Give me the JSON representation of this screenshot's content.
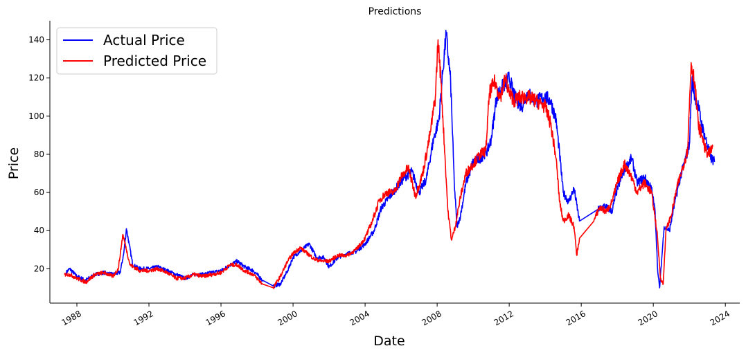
{
  "chart_data": {
    "type": "line",
    "title": "Predictions",
    "xlabel": "Date",
    "ylabel": "Price",
    "xlim": [
      1986.5,
      2024.8
    ],
    "ylim": [
      2,
      150
    ],
    "x_ticks": [
      {
        "value": 1988,
        "label": "1988"
      },
      {
        "value": 1992,
        "label": "1992"
      },
      {
        "value": 1996,
        "label": "1996"
      },
      {
        "value": 2000,
        "label": "2000"
      },
      {
        "value": 2004,
        "label": "2004"
      },
      {
        "value": 2008,
        "label": "2008"
      },
      {
        "value": 2012,
        "label": "2012"
      },
      {
        "value": 2016,
        "label": "2016"
      },
      {
        "value": 2020,
        "label": "2020"
      },
      {
        "value": 2024,
        "label": "2024"
      }
    ],
    "y_ticks": [
      {
        "value": 20,
        "label": "20"
      },
      {
        "value": 40,
        "label": "40"
      },
      {
        "value": 60,
        "label": "60"
      },
      {
        "value": 80,
        "label": "80"
      },
      {
        "value": 100,
        "label": "100"
      },
      {
        "value": 120,
        "label": "120"
      },
      {
        "value": 140,
        "label": "140"
      }
    ],
    "grid": false,
    "legend_position": "top-left",
    "series": [
      {
        "name": "Actual Price",
        "color": "#0000ff",
        "points": [
          [
            1987.4,
            18
          ],
          [
            1987.6,
            20
          ],
          [
            1988.0,
            16
          ],
          [
            1988.5,
            14
          ],
          [
            1989.0,
            17
          ],
          [
            1989.5,
            18
          ],
          [
            1990.0,
            17
          ],
          [
            1990.4,
            18
          ],
          [
            1990.6,
            28
          ],
          [
            1990.75,
            41
          ],
          [
            1990.9,
            33
          ],
          [
            1991.1,
            22
          ],
          [
            1991.5,
            20
          ],
          [
            1992.0,
            20
          ],
          [
            1992.5,
            21
          ],
          [
            1993.0,
            19
          ],
          [
            1993.5,
            17
          ],
          [
            1994.0,
            15
          ],
          [
            1994.5,
            17
          ],
          [
            1995.0,
            17
          ],
          [
            1995.5,
            18
          ],
          [
            1996.0,
            19
          ],
          [
            1996.5,
            22
          ],
          [
            1996.9,
            24
          ],
          [
            1997.3,
            21
          ],
          [
            1997.8,
            19
          ],
          [
            1998.3,
            14
          ],
          [
            1998.9,
            11
          ],
          [
            1999.3,
            12
          ],
          [
            1999.7,
            19
          ],
          [
            2000.0,
            26
          ],
          [
            2000.5,
            30
          ],
          [
            2000.9,
            33
          ],
          [
            2001.3,
            26
          ],
          [
            2001.7,
            26
          ],
          [
            2002.0,
            21
          ],
          [
            2002.5,
            26
          ],
          [
            2003.0,
            28
          ],
          [
            2003.5,
            29
          ],
          [
            2004.0,
            33
          ],
          [
            2004.5,
            40
          ],
          [
            2004.9,
            52
          ],
          [
            2005.3,
            57
          ],
          [
            2005.7,
            62
          ],
          [
            2006.2,
            68
          ],
          [
            2006.6,
            71
          ],
          [
            2007.0,
            60
          ],
          [
            2007.4,
            67
          ],
          [
            2007.8,
            88
          ],
          [
            2008.1,
            98
          ],
          [
            2008.3,
            122
          ],
          [
            2008.5,
            143
          ],
          [
            2008.75,
            118
          ],
          [
            2008.95,
            65
          ],
          [
            2009.1,
            42
          ],
          [
            2009.3,
            48
          ],
          [
            2009.6,
            65
          ],
          [
            2010.0,
            76
          ],
          [
            2010.4,
            78
          ],
          [
            2010.8,
            82
          ],
          [
            2011.0,
            88
          ],
          [
            2011.3,
            110
          ],
          [
            2011.6,
            115
          ],
          [
            2012.0,
            120
          ],
          [
            2012.3,
            110
          ],
          [
            2012.7,
            105
          ],
          [
            2013.0,
            112
          ],
          [
            2013.5,
            108
          ],
          [
            2014.0,
            110
          ],
          [
            2014.3,
            108
          ],
          [
            2014.6,
            98
          ],
          [
            2014.8,
            80
          ],
          [
            2015.0,
            60
          ],
          [
            2015.3,
            55
          ],
          [
            2015.6,
            62
          ],
          [
            2015.9,
            45
          ],
          [
            2016.9,
            51
          ],
          [
            2017.3,
            53
          ],
          [
            2017.7,
            50
          ],
          [
            2018.0,
            62
          ],
          [
            2018.4,
            72
          ],
          [
            2018.8,
            78
          ],
          [
            2019.1,
            65
          ],
          [
            2019.5,
            68
          ],
          [
            2019.9,
            62
          ],
          [
            2020.1,
            50
          ],
          [
            2020.25,
            18
          ],
          [
            2020.35,
            10
          ],
          [
            2020.6,
            42
          ],
          [
            2020.9,
            40
          ],
          [
            2021.2,
            55
          ],
          [
            2021.5,
            68
          ],
          [
            2021.8,
            78
          ],
          [
            2022.0,
            85
          ],
          [
            2022.15,
            120
          ],
          [
            2022.3,
            110
          ],
          [
            2022.5,
            105
          ],
          [
            2022.7,
            95
          ],
          [
            2022.9,
            88
          ],
          [
            2023.2,
            78
          ],
          [
            2023.4,
            76
          ]
        ]
      },
      {
        "name": "Predicted Price",
        "color": "#ff0000",
        "points": [
          [
            1987.3,
            17
          ],
          [
            1987.6,
            17
          ],
          [
            1988.0,
            15
          ],
          [
            1988.5,
            13
          ],
          [
            1989.0,
            17
          ],
          [
            1989.5,
            18
          ],
          [
            1990.0,
            16
          ],
          [
            1990.3,
            20
          ],
          [
            1990.55,
            38
          ],
          [
            1990.75,
            30
          ],
          [
            1990.95,
            22
          ],
          [
            1991.5,
            19
          ],
          [
            1992.0,
            19
          ],
          [
            1992.5,
            20
          ],
          [
            1993.0,
            18
          ],
          [
            1993.5,
            15
          ],
          [
            1994.0,
            15
          ],
          [
            1994.5,
            17
          ],
          [
            1995.0,
            16
          ],
          [
            1995.5,
            17
          ],
          [
            1996.0,
            18
          ],
          [
            1996.5,
            22
          ],
          [
            1996.9,
            22
          ],
          [
            1997.3,
            19
          ],
          [
            1997.8,
            17
          ],
          [
            1998.3,
            12
          ],
          [
            1998.9,
            10
          ],
          [
            1999.3,
            16
          ],
          [
            1999.7,
            24
          ],
          [
            2000.0,
            28
          ],
          [
            2000.4,
            31
          ],
          [
            2000.8,
            28
          ],
          [
            2001.2,
            25
          ],
          [
            2001.6,
            24
          ],
          [
            2002.0,
            24
          ],
          [
            2002.5,
            27
          ],
          [
            2003.0,
            27
          ],
          [
            2003.5,
            30
          ],
          [
            2004.0,
            36
          ],
          [
            2004.4,
            45
          ],
          [
            2004.8,
            56
          ],
          [
            2005.2,
            60
          ],
          [
            2005.6,
            60
          ],
          [
            2006.0,
            68
          ],
          [
            2006.4,
            73
          ],
          [
            2006.8,
            58
          ],
          [
            2007.2,
            70
          ],
          [
            2007.6,
            90
          ],
          [
            2007.9,
            110
          ],
          [
            2008.05,
            140
          ],
          [
            2008.2,
            120
          ],
          [
            2008.4,
            85
          ],
          [
            2008.6,
            50
          ],
          [
            2008.8,
            35
          ],
          [
            2009.0,
            42
          ],
          [
            2009.3,
            58
          ],
          [
            2009.6,
            70
          ],
          [
            2010.0,
            75
          ],
          [
            2010.4,
            80
          ],
          [
            2010.7,
            82
          ],
          [
            2010.9,
            112
          ],
          [
            2011.2,
            118
          ],
          [
            2011.5,
            110
          ],
          [
            2011.8,
            120
          ],
          [
            2012.0,
            112
          ],
          [
            2012.3,
            108
          ],
          [
            2012.6,
            110
          ],
          [
            2013.0,
            110
          ],
          [
            2013.5,
            108
          ],
          [
            2014.0,
            105
          ],
          [
            2014.3,
            96
          ],
          [
            2014.6,
            78
          ],
          [
            2014.8,
            55
          ],
          [
            2015.0,
            45
          ],
          [
            2015.3,
            48
          ],
          [
            2015.6,
            42
          ],
          [
            2015.75,
            27
          ],
          [
            2015.9,
            36
          ],
          [
            2016.7,
            45
          ],
          [
            2017.0,
            52
          ],
          [
            2017.4,
            50
          ],
          [
            2017.7,
            55
          ],
          [
            2018.0,
            65
          ],
          [
            2018.4,
            75
          ],
          [
            2018.8,
            68
          ],
          [
            2019.1,
            60
          ],
          [
            2019.5,
            65
          ],
          [
            2019.9,
            60
          ],
          [
            2020.2,
            40
          ],
          [
            2020.4,
            15
          ],
          [
            2020.55,
            12
          ],
          [
            2020.7,
            40
          ],
          [
            2021.0,
            48
          ],
          [
            2021.3,
            62
          ],
          [
            2021.6,
            72
          ],
          [
            2021.9,
            82
          ],
          [
            2022.1,
            128
          ],
          [
            2022.3,
            118
          ],
          [
            2022.5,
            95
          ],
          [
            2022.7,
            90
          ],
          [
            2022.9,
            82
          ],
          [
            2023.1,
            80
          ],
          [
            2023.3,
            84
          ]
        ]
      }
    ]
  }
}
